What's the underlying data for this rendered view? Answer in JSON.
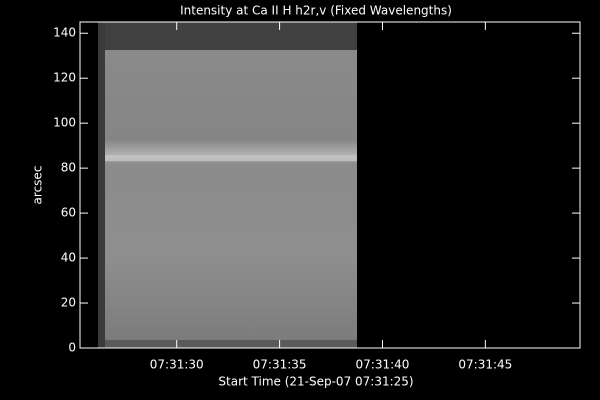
{
  "chart_data": {
    "type": "image",
    "title": "Intensity at Ca II H h2r,v (Fixed Wavelengths)",
    "x_label": "Start Time (21-Sep-07 07:31:25)",
    "y_label": "arcsec",
    "xlim": [
      25.3,
      49.6
    ],
    "xticks": [
      {
        "value": 30,
        "label": "07:31:30"
      },
      {
        "value": 35,
        "label": "07:31:35"
      },
      {
        "value": 40,
        "label": "07:31:40"
      },
      {
        "value": 45,
        "label": "07:31:45"
      }
    ],
    "ylim": [
      0,
      145
    ],
    "yticks": [
      0,
      20,
      40,
      60,
      80,
      100,
      120,
      140
    ]
  }
}
